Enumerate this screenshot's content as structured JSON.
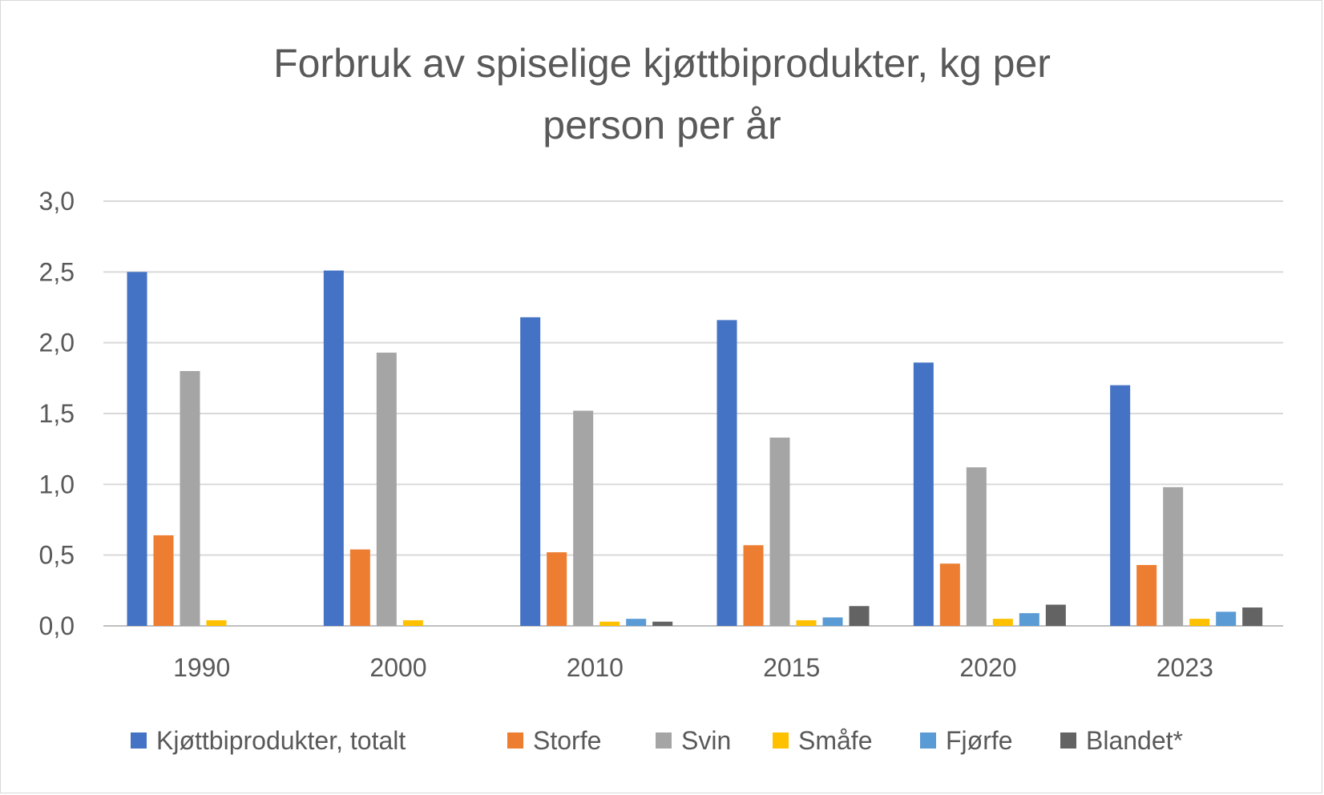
{
  "chart_data": {
    "type": "bar",
    "title_lines": [
      "Forbruk av spiselige kjøttbiprodukter, kg per",
      "person per år"
    ],
    "xlabel": "",
    "ylabel": "",
    "ylim": [
      0,
      3
    ],
    "y_ticks": [
      0,
      0.5,
      1,
      1.5,
      2,
      2.5,
      3
    ],
    "y_tick_labels": [
      "0,0",
      "0,5",
      "1,0",
      "1,5",
      "2,0",
      "2,5",
      "3,0"
    ],
    "grid": true,
    "legend_position": "bottom",
    "categories": [
      "1990",
      "2000",
      "2010",
      "2015",
      "2020",
      "2023"
    ],
    "series": [
      {
        "name": "Kjøttbiprodukter, totalt",
        "color": "#4472c4",
        "values": [
          2.5,
          2.51,
          2.18,
          2.16,
          1.86,
          1.7
        ]
      },
      {
        "name": "Storfe",
        "color": "#ed7d31",
        "values": [
          0.64,
          0.54,
          0.52,
          0.57,
          0.44,
          0.43
        ]
      },
      {
        "name": "Svin",
        "color": "#a5a5a5",
        "values": [
          1.8,
          1.93,
          1.52,
          1.33,
          1.12,
          0.98
        ]
      },
      {
        "name": "Småfe",
        "color": "#ffc000",
        "values": [
          0.04,
          0.04,
          0.03,
          0.04,
          0.05,
          0.05
        ]
      },
      {
        "name": "Fjørfe",
        "color": "#5b9bd5",
        "values": [
          0,
          0,
          0.05,
          0.06,
          0.09,
          0.1
        ]
      },
      {
        "name": "Blandet*",
        "color": "#636363",
        "values": [
          0,
          0,
          0.03,
          0.14,
          0.15,
          0.13
        ]
      }
    ]
  }
}
